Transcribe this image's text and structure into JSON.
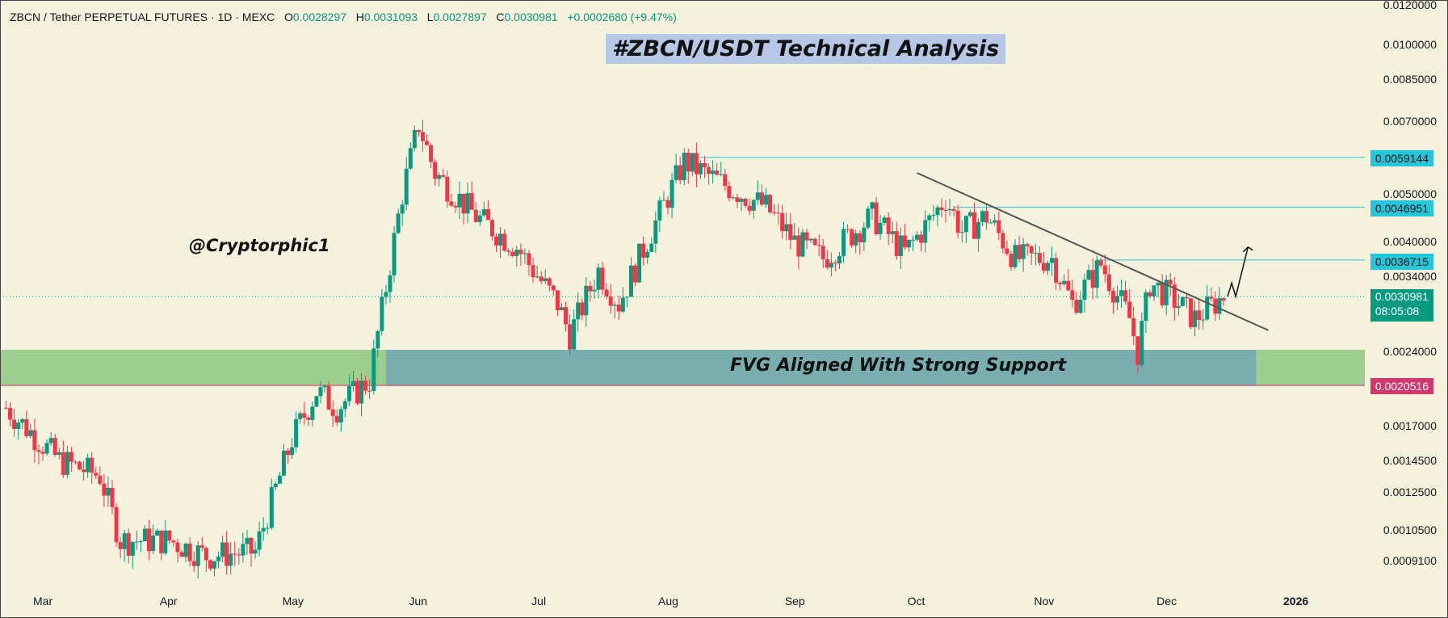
{
  "header": {
    "symbol": "ZBCN / Tether PERPETUAL FUTURES · 1D · MEXC",
    "o_label": "O",
    "o_value": "0.0028297",
    "h_label": "H",
    "h_value": "0.0031093",
    "l_label": "L",
    "l_value": "0.0027897",
    "c_label": "C",
    "c_value": "0.0030981",
    "change": "+0.0002680 (+9.47%)"
  },
  "title": "#ZBCN/USDT Technical Analysis",
  "watermark": "@Cryptorphic1",
  "zone_label": "FVG Aligned With Strong Support",
  "price_tags": {
    "resistance_1": "0.0059144",
    "resistance_2": "0.0046951",
    "resistance_3": "0.0036715",
    "current_price": "0.0030981",
    "countdown": "08:05:08",
    "support": "0.0020516"
  },
  "colors": {
    "up": "#089981",
    "down": "#f23645",
    "background": "#f4f1dc",
    "support_zone": "#9ccf8e",
    "fvg_zone": "#78aeb0",
    "level_line": "#26c6da",
    "support_line": "#d2386c",
    "title_bg": "#b7c7e6"
  },
  "chart_data": {
    "type": "candlestick",
    "title": "#ZBCN/USDT Technical Analysis",
    "symbol": "ZBCN / Tether PERPETUAL FUTURES",
    "timeframe": "1D",
    "exchange": "MEXC",
    "y_scale": "log",
    "y_ticks": [
      "0.0120000",
      "0.0100000",
      "0.0085000",
      "0.0070000",
      "0.0050000",
      "0.0040000",
      "0.0034000",
      "0.0024000",
      "0.0017000",
      "0.0014500",
      "0.0012500",
      "0.0010500",
      "0.0009100"
    ],
    "x_ticks": [
      "Mar",
      "Apr",
      "May",
      "Jun",
      "Jul",
      "Aug",
      "Sep",
      "Oct",
      "Nov",
      "Dec",
      "2026"
    ],
    "horizontal_levels": [
      0.0059144,
      0.0046951,
      0.0036715,
      0.0020516
    ],
    "support_zone": [
      0.00205,
      0.00242
    ],
    "fvg_zone": [
      0.00205,
      0.00242
    ],
    "approx_close_path": [
      {
        "date": "2025-02-20",
        "close": 0.00185
      },
      {
        "date": "2025-03-05",
        "close": 0.00145
      },
      {
        "date": "2025-03-15",
        "close": 0.00135
      },
      {
        "date": "2025-03-20",
        "close": 0.001
      },
      {
        "date": "2025-04-01",
        "close": 0.001
      },
      {
        "date": "2025-04-10",
        "close": 0.00093
      },
      {
        "date": "2025-04-22",
        "close": 0.00095
      },
      {
        "date": "2025-05-01",
        "close": 0.0016
      },
      {
        "date": "2025-05-07",
        "close": 0.002
      },
      {
        "date": "2025-05-12",
        "close": 0.00185
      },
      {
        "date": "2025-05-20",
        "close": 0.0021
      },
      {
        "date": "2025-05-28",
        "close": 0.005
      },
      {
        "date": "2025-06-01",
        "close": 0.0069
      },
      {
        "date": "2025-06-05",
        "close": 0.0055
      },
      {
        "date": "2025-06-15",
        "close": 0.0045
      },
      {
        "date": "2025-06-25",
        "close": 0.0039
      },
      {
        "date": "2025-07-05",
        "close": 0.003
      },
      {
        "date": "2025-07-08",
        "close": 0.0026
      },
      {
        "date": "2025-07-15",
        "close": 0.0035
      },
      {
        "date": "2025-07-20",
        "close": 0.003
      },
      {
        "date": "2025-07-28",
        "close": 0.0042
      },
      {
        "date": "2025-08-05",
        "close": 0.0058
      },
      {
        "date": "2025-08-15",
        "close": 0.0052
      },
      {
        "date": "2025-08-25",
        "close": 0.0047
      },
      {
        "date": "2025-09-01",
        "close": 0.004
      },
      {
        "date": "2025-09-08",
        "close": 0.0037
      },
      {
        "date": "2025-09-20",
        "close": 0.0045
      },
      {
        "date": "2025-09-28",
        "close": 0.0038
      },
      {
        "date": "2025-10-04",
        "close": 0.0044
      },
      {
        "date": "2025-10-08",
        "close": 0.0049
      },
      {
        "date": "2025-10-12",
        "close": 0.0042
      },
      {
        "date": "2025-10-18",
        "close": 0.0045
      },
      {
        "date": "2025-10-25",
        "close": 0.0037
      },
      {
        "date": "2025-11-03",
        "close": 0.0037
      },
      {
        "date": "2025-11-08",
        "close": 0.003
      },
      {
        "date": "2025-11-15",
        "close": 0.0036
      },
      {
        "date": "2025-11-22",
        "close": 0.0028
      },
      {
        "date": "2025-11-24",
        "close": 0.0024
      },
      {
        "date": "2025-11-27",
        "close": 0.0033
      },
      {
        "date": "2025-12-02",
        "close": 0.0031
      },
      {
        "date": "2025-12-08",
        "close": 0.0028
      },
      {
        "date": "2025-12-15",
        "close": 0.0031
      }
    ],
    "trendline": {
      "from": {
        "date": "2025-10-01",
        "price": 0.0055
      },
      "to": {
        "date": "2025-12-26",
        "price": 0.00265
      }
    },
    "projection": [
      {
        "date": "2025-12-16",
        "price": 0.0031
      },
      {
        "date": "2025-12-17",
        "price": 0.0033
      },
      {
        "date": "2025-12-18",
        "price": 0.0031
      },
      {
        "date": "2025-12-21",
        "price": 0.0039
      }
    ]
  }
}
